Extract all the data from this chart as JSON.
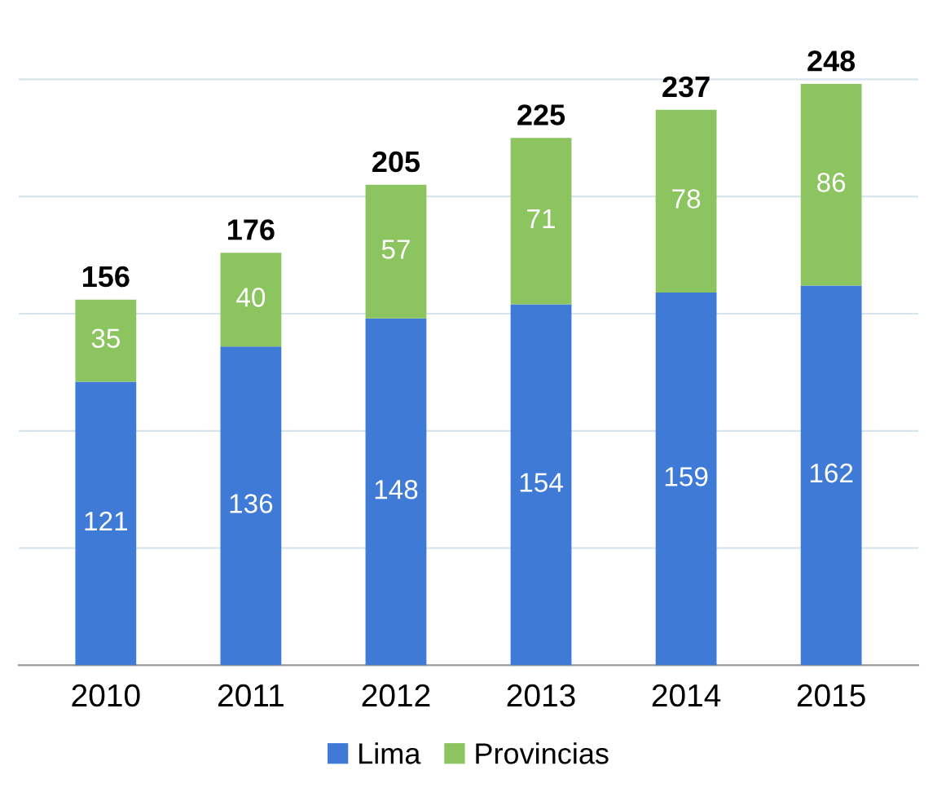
{
  "chart_data": {
    "type": "bar",
    "stacked": true,
    "categories": [
      "2010",
      "2011",
      "2012",
      "2013",
      "2014",
      "2015"
    ],
    "series": [
      {
        "name": "Lima",
        "color": "#3f7bd6",
        "values": [
          121,
          136,
          148,
          154,
          159,
          162
        ]
      },
      {
        "name": "Provincias",
        "color": "#8cc460",
        "values": [
          35,
          40,
          57,
          71,
          78,
          86
        ]
      }
    ],
    "totals": [
      "156",
      "176",
      "205",
      "225",
      "237",
      "248"
    ],
    "data_labels": true,
    "yticks": [
      {
        "value": 50,
        "label": null
      },
      {
        "value": 100,
        "label": null
      },
      {
        "value": 150,
        "label": null
      },
      {
        "value": 200,
        "label": null
      },
      {
        "value": 250,
        "label": null
      }
    ],
    "tick_labels": "x",
    "grid": "y",
    "legend": "bottom"
  }
}
